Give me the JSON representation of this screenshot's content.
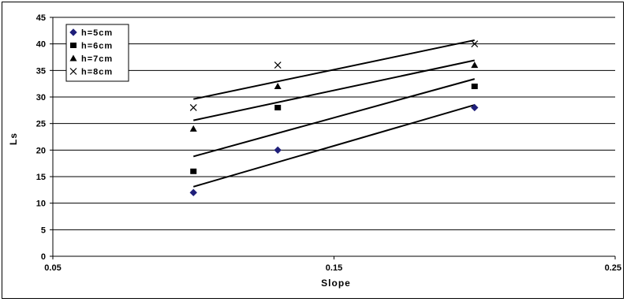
{
  "chart_data": {
    "type": "scatter",
    "xlabel": "Slope",
    "ylabel": "Ls",
    "xlim": [
      0.05,
      0.25
    ],
    "ylim": [
      0,
      45
    ],
    "x_ticks": [
      "0.05",
      "0.15",
      "0.25"
    ],
    "x_tick_values": [
      0.05,
      0.15,
      0.25
    ],
    "y_ticks": [
      "0",
      "5",
      "10",
      "15",
      "20",
      "25",
      "30",
      "35",
      "40",
      "45"
    ],
    "y_tick_values": [
      0,
      5,
      10,
      15,
      20,
      25,
      30,
      35,
      40,
      45
    ],
    "grid": "horizontal",
    "legend_position": "top-left",
    "x": [
      0.1,
      0.13,
      0.2
    ],
    "series": [
      {
        "name": "h=5cm",
        "marker": "diamond",
        "color": "#1f1f7a",
        "values": [
          12,
          20,
          28
        ],
        "trend": [
          13.1,
          18.1,
          28.5
        ]
      },
      {
        "name": "h=6cm",
        "marker": "square",
        "color": "#000000",
        "values": [
          16,
          28,
          32
        ],
        "trend": [
          18.8,
          23.7,
          33.4
        ]
      },
      {
        "name": "h=7cm",
        "marker": "triangle",
        "color": "#000000",
        "values": [
          24,
          32,
          36
        ],
        "trend": [
          25.6,
          29.6,
          36.9
        ]
      },
      {
        "name": "h=8cm",
        "marker": "x",
        "color": "#000000",
        "values": [
          28,
          36,
          40
        ],
        "trend": [
          29.6,
          33.4,
          40.7
        ]
      }
    ]
  }
}
